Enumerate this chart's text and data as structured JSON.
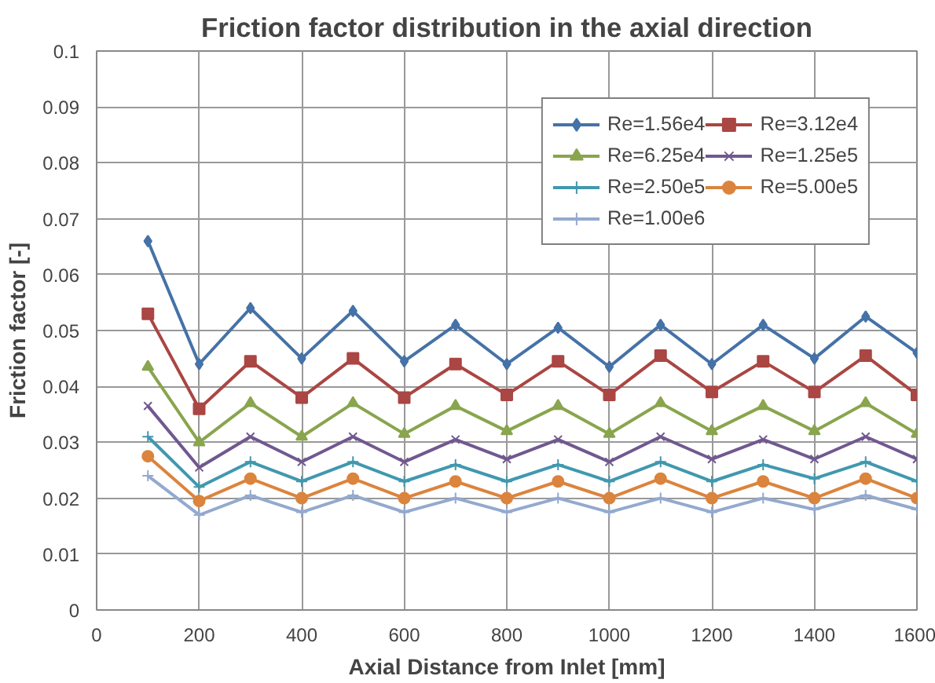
{
  "chart_data": {
    "type": "line",
    "title": "Friction factor distribution in the axial direction",
    "xlabel": "Axial Distance from Inlet [mm]",
    "ylabel": "Friction factor [-]",
    "x": [
      100,
      200,
      300,
      400,
      500,
      600,
      700,
      800,
      900,
      1000,
      1100,
      1200,
      1300,
      1400,
      1500,
      1600
    ],
    "xlim": [
      0,
      1600
    ],
    "xticks": [
      0,
      200,
      400,
      600,
      800,
      1000,
      1200,
      1400,
      1600
    ],
    "ylim": [
      0,
      0.1
    ],
    "yticks": [
      0,
      0.01,
      0.02,
      0.03,
      0.04,
      0.05,
      0.06,
      0.07,
      0.08,
      0.09,
      0.1
    ],
    "grid": true,
    "legend": "top right",
    "line_style": "solid",
    "series": [
      {
        "name": "Re=1.56e4",
        "color": "#4572a7",
        "marker": "diamond",
        "values": [
          0.066,
          0.044,
          0.054,
          0.045,
          0.0535,
          0.0445,
          0.051,
          0.044,
          0.0505,
          0.0435,
          0.051,
          0.044,
          0.051,
          0.045,
          0.0525,
          0.046
        ]
      },
      {
        "name": "Re=3.12e4",
        "color": "#aa4643",
        "marker": "square",
        "values": [
          0.053,
          0.036,
          0.0445,
          0.038,
          0.045,
          0.038,
          0.044,
          0.0385,
          0.0445,
          0.0385,
          0.0455,
          0.039,
          0.0445,
          0.039,
          0.0455,
          0.0385
        ]
      },
      {
        "name": "Re=6.25e4",
        "color": "#89a54e",
        "marker": "triangle",
        "values": [
          0.0435,
          0.03,
          0.037,
          0.031,
          0.037,
          0.0315,
          0.0365,
          0.032,
          0.0365,
          0.0315,
          0.037,
          0.032,
          0.0365,
          0.032,
          0.037,
          0.0315
        ]
      },
      {
        "name": "Re=1.25e5",
        "color": "#71588f",
        "marker": "x",
        "values": [
          0.0365,
          0.0255,
          0.031,
          0.0265,
          0.031,
          0.0265,
          0.0305,
          0.027,
          0.0305,
          0.0265,
          0.031,
          0.027,
          0.0305,
          0.027,
          0.031,
          0.027
        ]
      },
      {
        "name": "Re=2.50e5",
        "color": "#4198af",
        "marker": "cross",
        "values": [
          0.031,
          0.022,
          0.0265,
          0.023,
          0.0265,
          0.023,
          0.026,
          0.023,
          0.026,
          0.023,
          0.0265,
          0.023,
          0.026,
          0.0235,
          0.0265,
          0.023
        ]
      },
      {
        "name": "Re=5.00e5",
        "color": "#db843d",
        "marker": "circle",
        "values": [
          0.0275,
          0.0195,
          0.0235,
          0.02,
          0.0235,
          0.02,
          0.023,
          0.02,
          0.023,
          0.02,
          0.0235,
          0.02,
          0.023,
          0.02,
          0.0235,
          0.02
        ]
      },
      {
        "name": "Re=1.00e6",
        "color": "#93a9cf",
        "marker": "cross",
        "values": [
          0.024,
          0.017,
          0.0205,
          0.0175,
          0.0205,
          0.0175,
          0.02,
          0.0175,
          0.02,
          0.0175,
          0.02,
          0.0175,
          0.02,
          0.018,
          0.0205,
          0.018
        ]
      }
    ]
  }
}
